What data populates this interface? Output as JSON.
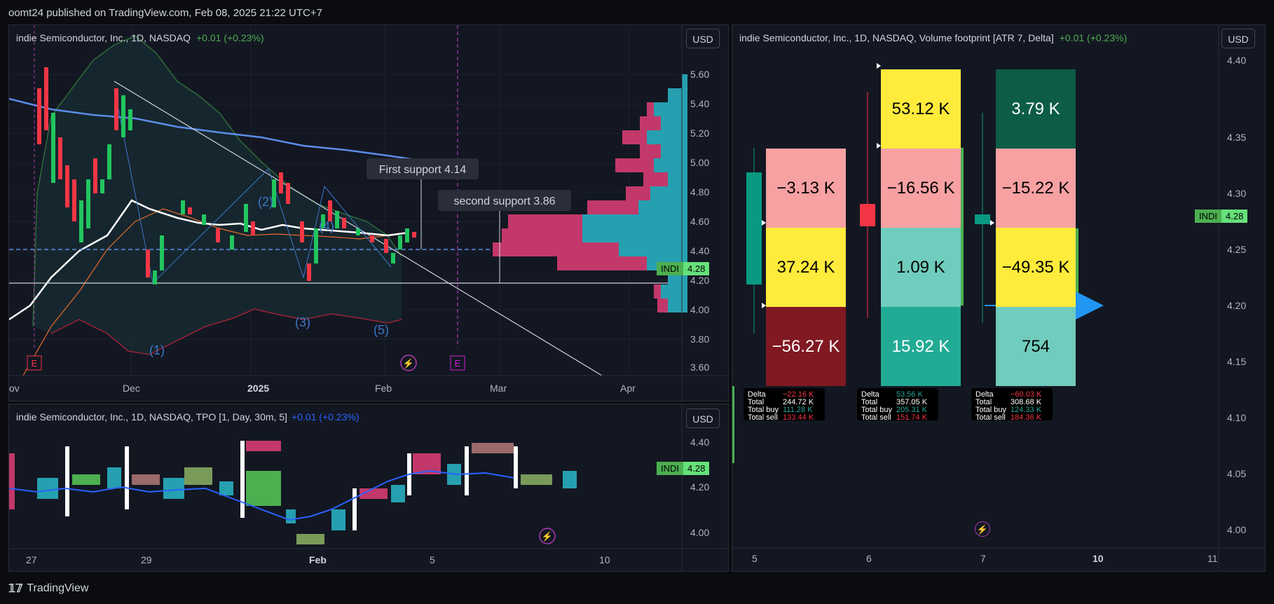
{
  "header": {
    "published": "oomt24 published on TradingView.com, Feb 08, 2025 21:22 UTC+7"
  },
  "main_chart": {
    "title": "indie Semiconductor, Inc., 1D, NASDAQ",
    "change": "+0.01 (+0.23%)",
    "currency": "USD",
    "price_ticks": [
      "5.60",
      "5.40",
      "5.20",
      "5.00",
      "4.80",
      "4.60",
      "4.40",
      "4.20",
      "4.00",
      "3.80",
      "3.60"
    ],
    "time_ticks": [
      "ov",
      "Dec",
      "2025",
      "Feb",
      "Mar",
      "Apr"
    ],
    "annotations": {
      "first_support": "First support 4.14",
      "second_support": "second support 3.86"
    },
    "wave_labels": [
      "(1)",
      "(2)",
      "(3)",
      "(4)",
      "(5)"
    ],
    "symbol": "INDI",
    "last_price": "4.28",
    "earnings_label": "E"
  },
  "tpo_chart": {
    "title": "indie Semiconductor, Inc., 1D, NASDAQ, TPO [1, Day, 30m, 5]",
    "change": "+0.01 (+0.23%)",
    "currency": "USD",
    "price_ticks": [
      "4.40",
      "4.20",
      "4.00"
    ],
    "time_ticks": [
      "27",
      "29",
      "Feb",
      "5",
      "10"
    ],
    "symbol": "INDI",
    "last_price": "4.28"
  },
  "footprint_chart": {
    "title": "indie Semiconductor, Inc., 1D, NASDAQ, Volume footprint [ATR 7, Delta]",
    "change": "+0.01 (+0.23%)",
    "currency": "USD",
    "price_ticks": [
      "4.40",
      "4.35",
      "4.30",
      "4.25",
      "4.20",
      "4.15",
      "4.10",
      "4.05",
      "4.00"
    ],
    "time_ticks": [
      "5",
      "6",
      "7",
      "10",
      "11"
    ],
    "symbol": "INDI",
    "last_price": "4.28",
    "columns": [
      {
        "cells": [
          "−3.13 K",
          "37.24 K",
          "−56.27 K"
        ],
        "colors": [
          "#f7a1a3",
          "#ffeb3b",
          "#801922"
        ],
        "text_colors": [
          "#000",
          "#000",
          "#fff"
        ]
      },
      {
        "cells": [
          "53.12 K",
          "−16.56 K",
          "1.09 K",
          "15.92 K"
        ],
        "colors": [
          "#ffeb3b",
          "#f7a1a3",
          "#70ccbd",
          "#22ab94"
        ],
        "text_colors": [
          "#000",
          "#000",
          "#000",
          "#fff"
        ]
      },
      {
        "cells": [
          "3.79 K",
          "−15.22 K",
          "−49.35 K",
          "754"
        ],
        "colors": [
          "#0c5c47",
          "#f7a1a3",
          "#ffeb3b",
          "#70ccbd"
        ],
        "text_colors": [
          "#fff",
          "#000",
          "#000",
          "#000"
        ]
      }
    ],
    "legends": [
      {
        "delta": "−22.16 K",
        "total": "244.72 K",
        "buy": "111.28 K",
        "sell": "133.44 K",
        "delta_sign": "neg"
      },
      {
        "delta": "53.56 K",
        "total": "357.05 K",
        "buy": "205.31 K",
        "sell": "151.74 K",
        "delta_sign": "pos"
      },
      {
        "delta": "−60.03 K",
        "total": "308.68 K",
        "buy": "124.33 K",
        "sell": "184.36 K",
        "delta_sign": "neg"
      }
    ],
    "legend_keys": {
      "delta": "Delta",
      "total": "Total",
      "buy": "Total buy",
      "sell": "Total sell"
    }
  },
  "footer": {
    "brand": "TradingView"
  }
}
